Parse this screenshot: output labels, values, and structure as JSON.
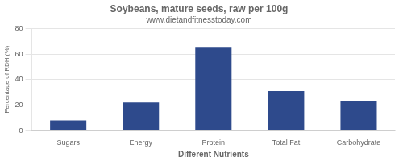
{
  "chart_data": {
    "type": "bar",
    "title": "Soybeans, mature seeds, raw per 100g",
    "subtitle": "www.dietandfitnesstoday.com",
    "xlabel": "Different Nutrients",
    "ylabel": "Percentage of RDH (%)",
    "categories": [
      "Sugars",
      "Energy",
      "Protein",
      "Total Fat",
      "Carbohydrate"
    ],
    "values": [
      8,
      22,
      65,
      31,
      23
    ],
    "color": "#2e4a8c",
    "ylim": [
      0,
      80
    ],
    "yticks": [
      0,
      20,
      40,
      60,
      80
    ],
    "grid": true
  }
}
